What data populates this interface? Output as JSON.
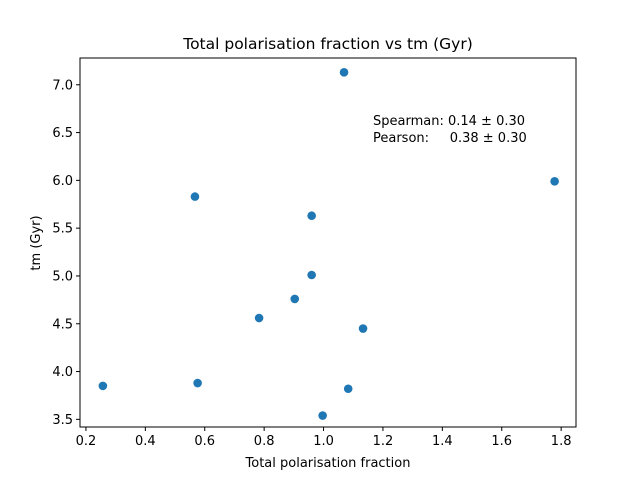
{
  "chart_data": {
    "type": "scatter",
    "title": "Total polarisation fraction vs tm (Gyr)",
    "xlabel": "Total polarisation fraction",
    "ylabel": "tm (Gyr)",
    "xlim": [
      0.18,
      1.85
    ],
    "ylim": [
      3.42,
      7.28
    ],
    "xticks": [
      0.2,
      0.4,
      0.6,
      0.8,
      1.0,
      1.2,
      1.4,
      1.6,
      1.8
    ],
    "xtick_labels": [
      "0.2",
      "0.4",
      "0.6",
      "0.8",
      "1.0",
      "1.2",
      "1.4",
      "1.6",
      "1.8"
    ],
    "yticks": [
      3.5,
      4.0,
      4.5,
      5.0,
      5.5,
      6.0,
      6.5,
      7.0
    ],
    "ytick_labels": [
      "3.5",
      "4.0",
      "4.5",
      "5.0",
      "5.5",
      "6.0",
      "6.5",
      "7.0"
    ],
    "grid": false,
    "marker_color": "#1f77b4",
    "points": [
      {
        "x": 0.257,
        "y": 3.85
      },
      {
        "x": 0.567,
        "y": 5.83
      },
      {
        "x": 0.576,
        "y": 3.88
      },
      {
        "x": 0.783,
        "y": 4.56
      },
      {
        "x": 0.903,
        "y": 4.76
      },
      {
        "x": 0.96,
        "y": 5.63
      },
      {
        "x": 0.96,
        "y": 5.01
      },
      {
        "x": 0.997,
        "y": 3.54
      },
      {
        "x": 1.069,
        "y": 7.13
      },
      {
        "x": 1.083,
        "y": 3.82
      },
      {
        "x": 1.133,
        "y": 4.45
      },
      {
        "x": 1.778,
        "y": 5.99
      }
    ],
    "annotations": [
      "Spearman: 0.14 ± 0.30",
      "Pearson:     0.38 ± 0.30"
    ]
  }
}
